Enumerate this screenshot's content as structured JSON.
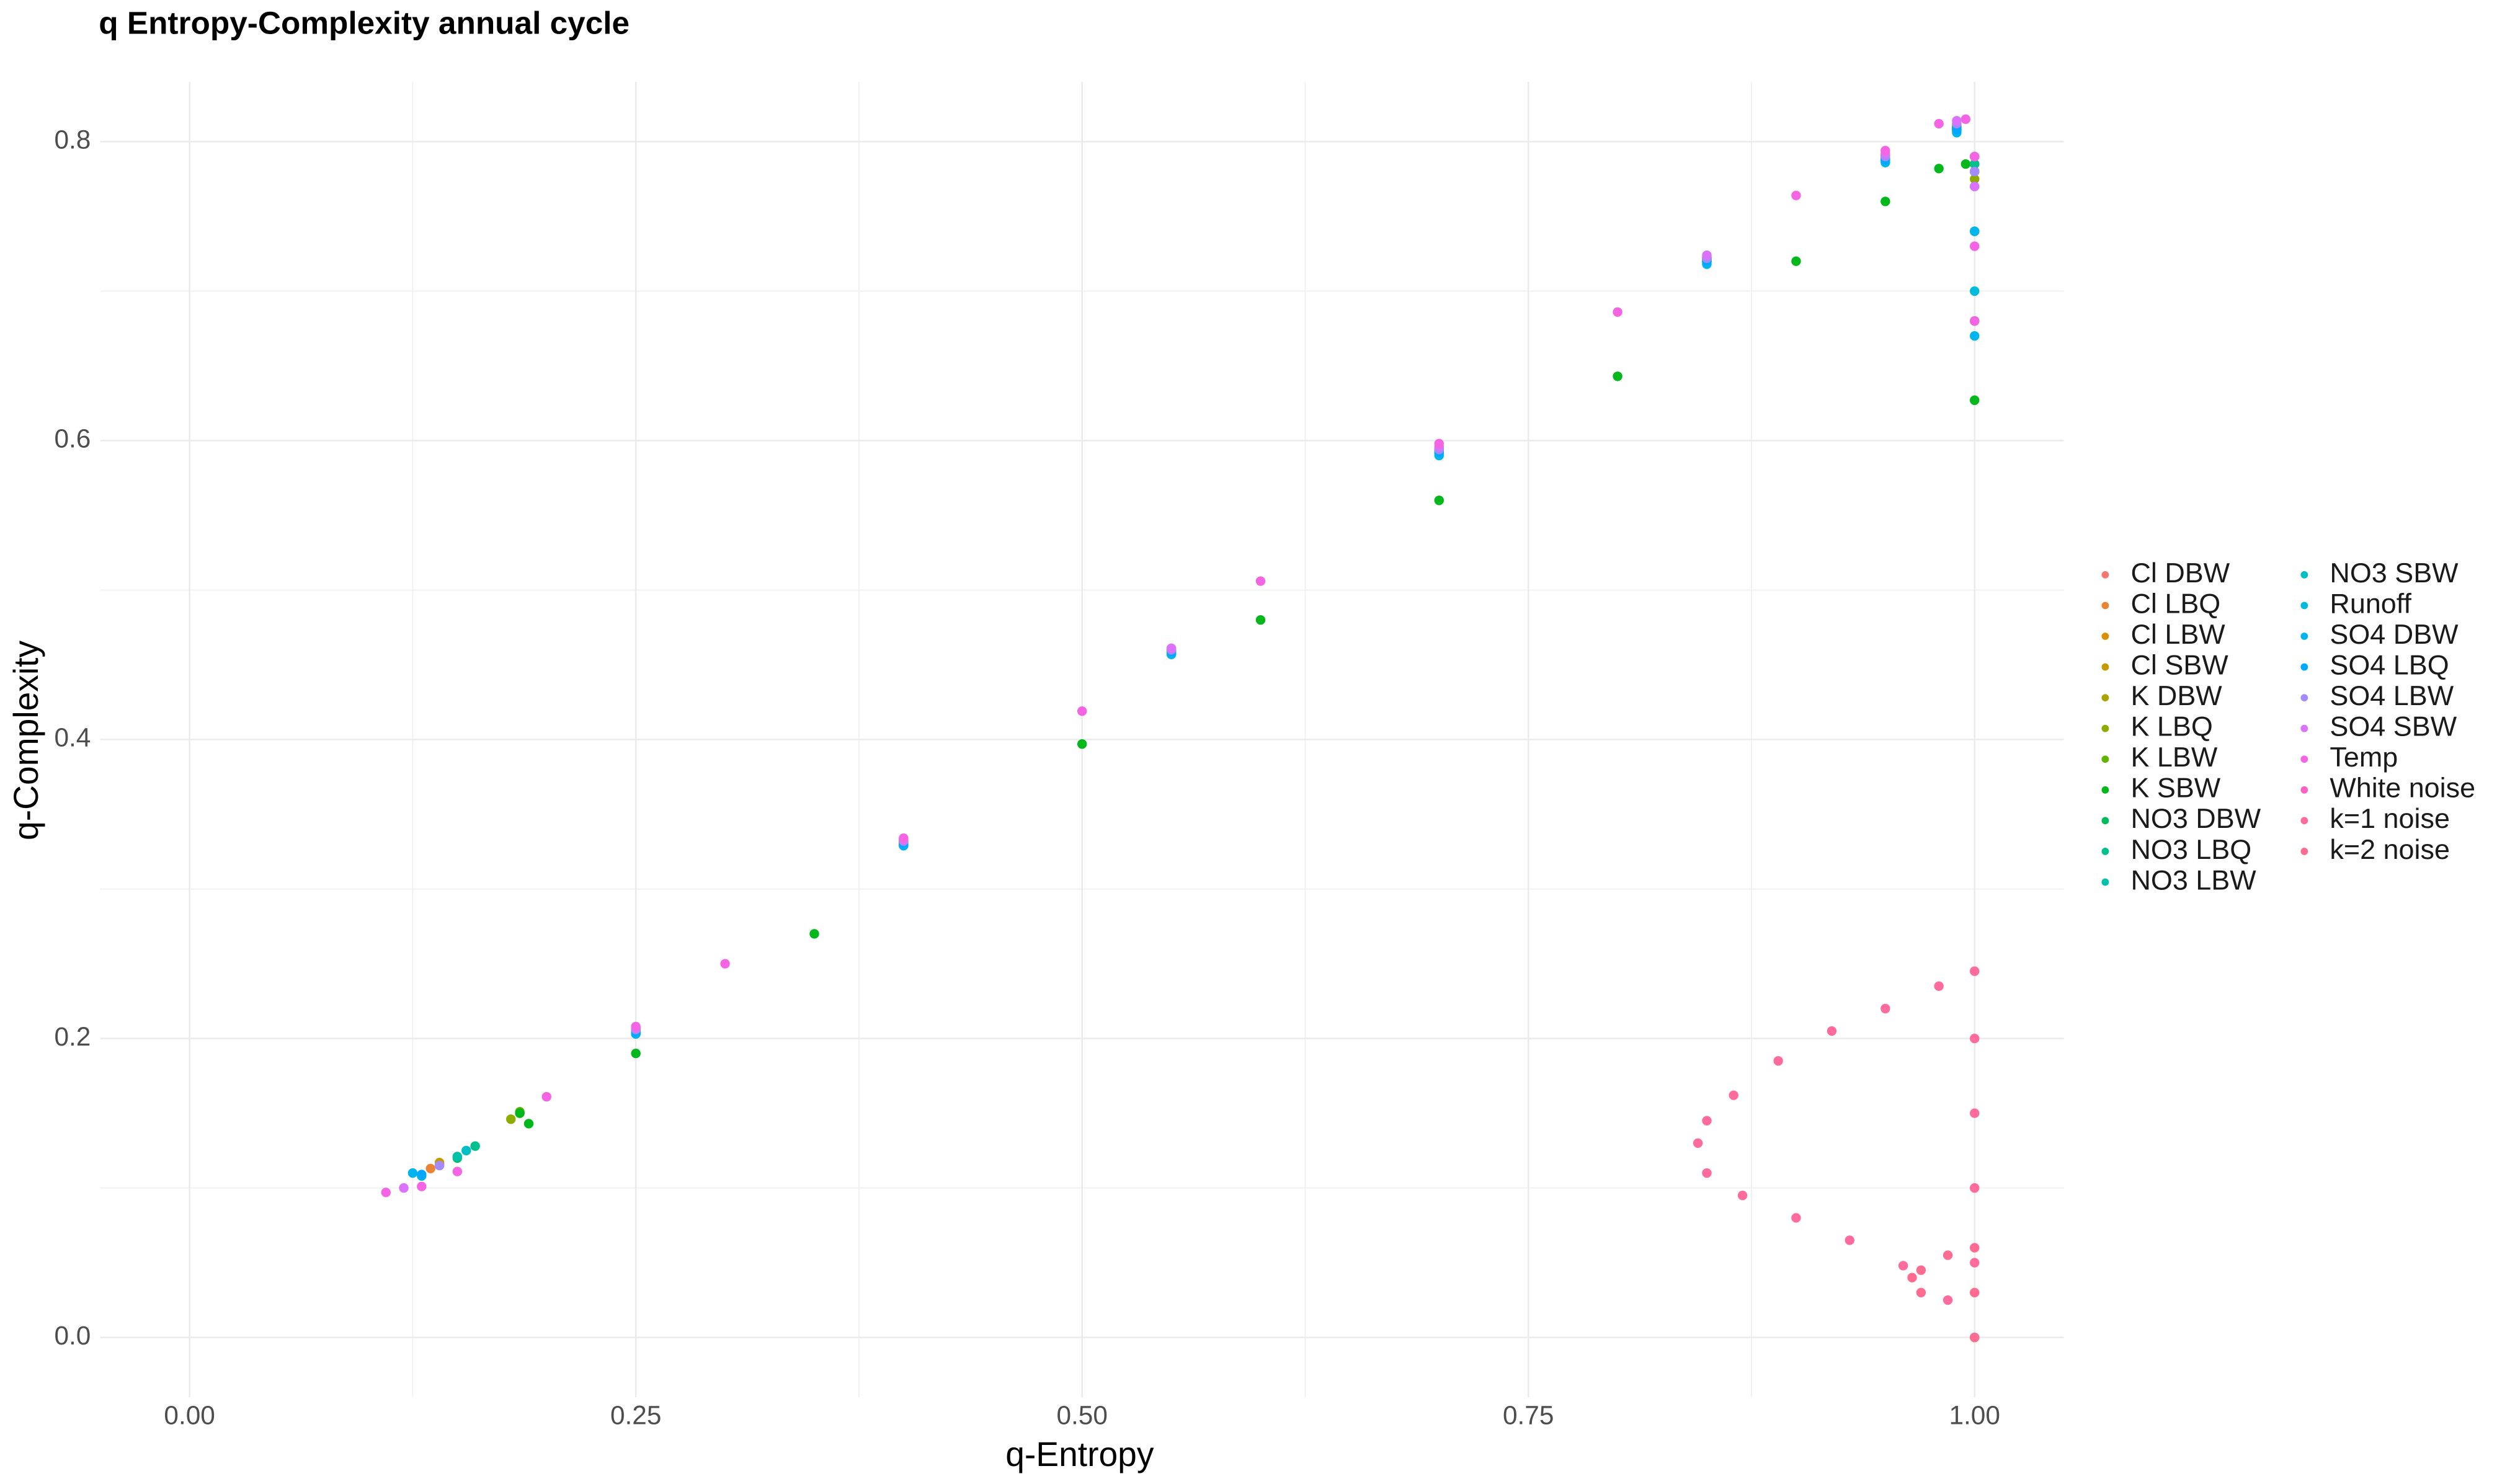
{
  "chart_data": {
    "type": "scatter",
    "title": "q Entropy-Complexity annual cycle",
    "x_label": "q-Entropy",
    "y_label": "q-Complexity",
    "xlim": [
      -0.05,
      1.05
    ],
    "ylim": [
      -0.04,
      0.84
    ],
    "xticks": [
      {
        "value": 0,
        "label": "0.00"
      },
      0.25,
      {
        "value": 0.5,
        "label": "0.50"
      },
      0.75,
      {
        "value": 1,
        "label": "1.00"
      }
    ],
    "yticks": [
      {
        "value": 0,
        "label": "0.0"
      },
      0.2,
      0.4,
      0.6,
      0.8
    ],
    "x_minor_grid": [
      0.125,
      0.375,
      0.625,
      0.875
    ],
    "y_minor_grid": [
      0.1,
      0.3,
      0.5,
      0.7
    ],
    "grid": true,
    "legend": "right",
    "series": [
      {
        "name": "Cl DBW",
        "color": "#F8766D",
        "x": [
          0.14,
          0.25,
          0.4,
          0.55,
          0.7,
          0.85,
          0.95,
          0.99,
          1.0
        ],
        "y": [
          0.115,
          0.206,
          0.332,
          0.46,
          0.594,
          0.722,
          0.79,
          0.81,
          0.79
        ]
      },
      {
        "name": "Cl LBQ",
        "color": "#EB8335",
        "x": [
          0.135,
          0.25,
          0.4,
          0.55,
          0.7,
          0.85,
          0.95,
          0.99,
          1.0
        ],
        "y": [
          0.113,
          0.205,
          0.331,
          0.459,
          0.593,
          0.721,
          0.789,
          0.809,
          0.785
        ]
      },
      {
        "name": "Cl LBW",
        "color": "#DA8F00",
        "x": [
          0.14,
          0.25,
          0.4,
          0.55,
          0.7,
          0.85,
          0.95,
          0.99,
          1.0
        ],
        "y": [
          0.116,
          0.206,
          0.333,
          0.461,
          0.595,
          0.723,
          0.791,
          0.811,
          0.79
        ]
      },
      {
        "name": "Cl SBW",
        "color": "#C49A00",
        "x": [
          0.14,
          0.25,
          0.4,
          0.55,
          0.7,
          0.85,
          0.95,
          0.99,
          1.0
        ],
        "y": [
          0.117,
          0.205,
          0.332,
          0.46,
          0.594,
          0.722,
          0.79,
          0.81,
          0.78
        ]
      },
      {
        "name": "K DBW",
        "color": "#ABA300",
        "x": [
          0.185,
          0.25,
          0.4,
          0.55,
          0.7,
          0.85,
          0.95,
          0.99,
          1.0
        ],
        "y": [
          0.15,
          0.205,
          0.331,
          0.459,
          0.593,
          0.72,
          0.788,
          0.808,
          0.78
        ]
      },
      {
        "name": "K LBQ",
        "color": "#8EAB00",
        "x": [
          0.18,
          0.25,
          0.4,
          0.55,
          0.7,
          0.85,
          0.95,
          0.99,
          1.0
        ],
        "y": [
          0.146,
          0.204,
          0.33,
          0.458,
          0.592,
          0.72,
          0.788,
          0.808,
          0.775
        ]
      },
      {
        "name": "K LBW",
        "color": "#64B200",
        "x": [
          0.185,
          0.25,
          0.4,
          0.55,
          0.7,
          0.85,
          0.95,
          0.99,
          1.0
        ],
        "y": [
          0.151,
          0.206,
          0.332,
          0.46,
          0.594,
          0.722,
          0.79,
          0.81,
          0.78
        ]
      },
      {
        "name": "K SBW",
        "color": "#00B81B",
        "x": [
          0.185,
          0.19,
          0.25,
          0.35,
          0.5,
          0.6,
          0.7,
          0.8,
          0.9,
          0.95,
          0.98,
          0.995,
          1.0,
          1.0,
          1.0
        ],
        "y": [
          0.15,
          0.143,
          0.19,
          0.27,
          0.397,
          0.48,
          0.56,
          0.643,
          0.72,
          0.76,
          0.782,
          0.785,
          0.74,
          0.68,
          0.627
        ]
      },
      {
        "name": "NO3 DBW",
        "color": "#00BD5C",
        "x": [
          0.15,
          0.25,
          0.4,
          0.55,
          0.7,
          0.85,
          0.95,
          0.99,
          1.0
        ],
        "y": [
          0.12,
          0.205,
          0.331,
          0.459,
          0.593,
          0.721,
          0.789,
          0.809,
          0.79
        ]
      },
      {
        "name": "NO3 LBQ",
        "color": "#00C08B",
        "x": [
          0.16,
          0.25,
          0.4,
          0.55,
          0.7,
          0.85,
          0.95,
          0.99,
          1.0
        ],
        "y": [
          0.128,
          0.204,
          0.33,
          0.458,
          0.592,
          0.72,
          0.788,
          0.808,
          0.785
        ]
      },
      {
        "name": "NO3 LBW",
        "color": "#00C1AA",
        "x": [
          0.15,
          0.25,
          0.4,
          0.55,
          0.7,
          0.85,
          0.95,
          0.99,
          1.0
        ],
        "y": [
          0.121,
          0.205,
          0.331,
          0.459,
          0.593,
          0.721,
          0.789,
          0.809,
          0.78
        ]
      },
      {
        "name": "NO3 SBW",
        "color": "#00BFC4",
        "x": [
          0.155,
          0.25,
          0.4,
          0.55,
          0.7,
          0.85,
          0.95,
          0.99,
          1.0
        ],
        "y": [
          0.125,
          0.204,
          0.33,
          0.458,
          0.592,
          0.72,
          0.788,
          0.808,
          0.78
        ]
      },
      {
        "name": "Runoff",
        "color": "#00BBDB",
        "x": [
          0.13,
          0.25,
          0.4,
          0.55,
          0.7,
          0.85,
          0.95,
          0.99,
          1.0
        ],
        "y": [
          0.108,
          0.203,
          0.329,
          0.457,
          0.591,
          0.719,
          0.787,
          0.807,
          0.7
        ]
      },
      {
        "name": "SO4 DBW",
        "color": "#00B4EF",
        "x": [
          0.125,
          0.25,
          0.4,
          0.55,
          0.7,
          0.85,
          0.95,
          0.99,
          1.0,
          1.0
        ],
        "y": [
          0.11,
          0.203,
          0.329,
          0.457,
          0.59,
          0.718,
          0.786,
          0.806,
          0.74,
          0.67
        ]
      },
      {
        "name": "SO4 LBQ",
        "color": "#00A9FF",
        "x": [
          0.13,
          0.25,
          0.4,
          0.55,
          0.7,
          0.85,
          0.95,
          0.99,
          1.0
        ],
        "y": [
          0.109,
          0.204,
          0.33,
          0.458,
          0.592,
          0.72,
          0.788,
          0.808,
          0.77
        ]
      },
      {
        "name": "SO4 LBW",
        "color": "#A58AFF",
        "x": [
          0.14,
          0.25,
          0.4,
          0.55,
          0.7,
          0.85,
          0.95,
          0.99,
          1.0
        ],
        "y": [
          0.115,
          0.206,
          0.332,
          0.46,
          0.594,
          0.722,
          0.79,
          0.812,
          0.78
        ]
      },
      {
        "name": "SO4 SBW",
        "color": "#DB72FB",
        "x": [
          0.12,
          0.25,
          0.4,
          0.55,
          0.7,
          0.85,
          0.95,
          0.99,
          1.0
        ],
        "y": [
          0.1,
          0.207,
          0.333,
          0.461,
          0.596,
          0.724,
          0.792,
          0.814,
          0.77
        ]
      },
      {
        "name": "Temp",
        "color": "#F564E3",
        "x": [
          0.11,
          0.13,
          0.15,
          0.2,
          0.25,
          0.3,
          0.4,
          0.5,
          0.6,
          0.7,
          0.8,
          0.9,
          0.95,
          0.98,
          0.995,
          1.0,
          1.0,
          1.0
        ],
        "y": [
          0.097,
          0.101,
          0.111,
          0.161,
          0.208,
          0.25,
          0.334,
          0.419,
          0.506,
          0.598,
          0.686,
          0.764,
          0.794,
          0.812,
          0.815,
          0.79,
          0.73,
          0.68
        ]
      },
      {
        "name": "White noise",
        "color": "#FF61C3",
        "x": [
          1.0
        ],
        "y": [
          0.0
        ]
      },
      {
        "name": "k=1 noise",
        "color": "#FF6C9C",
        "x": [
          1.0,
          0.98,
          0.95,
          0.92,
          0.89,
          0.865,
          0.85,
          0.845,
          0.85,
          0.87,
          0.9,
          0.93,
          0.96,
          0.985,
          1.0,
          1.0,
          1.0,
          1.0,
          1.0
        ],
        "y": [
          0.245,
          0.235,
          0.22,
          0.205,
          0.185,
          0.162,
          0.145,
          0.13,
          0.11,
          0.095,
          0.08,
          0.065,
          0.048,
          0.025,
          0.0,
          0.05,
          0.1,
          0.15,
          0.2
        ]
      },
      {
        "name": "k=2 noise",
        "color": "#FF6C91",
        "x": [
          0.97,
          0.965,
          0.97,
          0.985,
          1.0,
          1.0,
          1.0
        ],
        "y": [
          0.03,
          0.04,
          0.045,
          0.055,
          0.06,
          0.03,
          0.0
        ]
      }
    ]
  }
}
